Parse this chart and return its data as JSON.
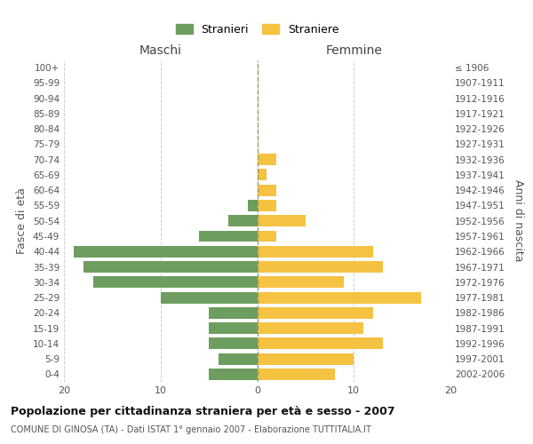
{
  "age_groups": [
    "0-4",
    "5-9",
    "10-14",
    "15-19",
    "20-24",
    "25-29",
    "30-34",
    "35-39",
    "40-44",
    "45-49",
    "50-54",
    "55-59",
    "60-64",
    "65-69",
    "70-74",
    "75-79",
    "80-84",
    "85-89",
    "90-94",
    "95-99",
    "100+"
  ],
  "birth_years": [
    "2002-2006",
    "1997-2001",
    "1992-1996",
    "1987-1991",
    "1982-1986",
    "1977-1981",
    "1972-1976",
    "1967-1971",
    "1962-1966",
    "1957-1961",
    "1952-1956",
    "1947-1951",
    "1942-1946",
    "1937-1941",
    "1932-1936",
    "1927-1931",
    "1922-1926",
    "1917-1921",
    "1912-1916",
    "1907-1911",
    "≤ 1906"
  ],
  "maschi": [
    5,
    4,
    5,
    5,
    5,
    10,
    17,
    18,
    19,
    6,
    3,
    1,
    0,
    0,
    0,
    0,
    0,
    0,
    0,
    0,
    0
  ],
  "femmine": [
    8,
    10,
    13,
    11,
    12,
    17,
    9,
    13,
    12,
    2,
    5,
    2,
    2,
    1,
    2,
    0,
    0,
    0,
    0,
    0,
    0
  ],
  "color_maschi": "#6e9e5f",
  "color_femmine": "#f5c242",
  "title": "Popolazione per cittadinanza straniera per età e sesso - 2007",
  "subtitle": "COMUNE DI GINOSA (TA) - Dati ISTAT 1° gennaio 2007 - Elaborazione TUTTITALIA.IT",
  "xlabel_maschi": "Maschi",
  "xlabel_femmine": "Femmine",
  "ylabel_left": "Fasce di età",
  "ylabel_right": "Anni di nascita",
  "legend_maschi": "Stranieri",
  "legend_femmine": "Straniere",
  "xlim": 20,
  "background_color": "#ffffff",
  "grid_color": "#cccccc"
}
